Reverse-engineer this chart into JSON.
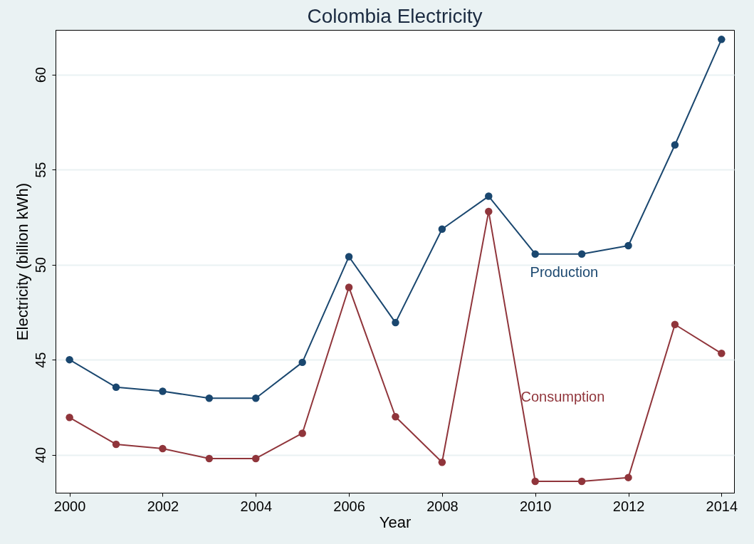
{
  "chart_data": {
    "type": "line",
    "title": "Colombia Electricity",
    "xlabel": "Year",
    "ylabel": "Electricity (billion kWh)",
    "x": [
      2000,
      2001,
      2002,
      2003,
      2004,
      2005,
      2006,
      2007,
      2008,
      2009,
      2010,
      2011,
      2012,
      2013,
      2014
    ],
    "series": [
      {
        "name": "Production",
        "color": "#1a476f",
        "values": [
          45.0,
          43.55,
          43.34,
          42.97,
          42.97,
          44.86,
          50.42,
          46.95,
          51.87,
          53.6,
          50.56,
          50.56,
          51.0,
          56.3,
          61.85
        ]
      },
      {
        "name": "Consumption",
        "color": "#90353b",
        "values": [
          41.96,
          40.55,
          40.32,
          39.8,
          39.8,
          41.13,
          48.81,
          42.0,
          39.6,
          52.8,
          38.6,
          38.6,
          38.8,
          46.85,
          45.33
        ]
      }
    ],
    "xlim": [
      1999.7,
      2014.27
    ],
    "xticks": [
      2000,
      2002,
      2004,
      2006,
      2008,
      2010,
      2012,
      2014
    ],
    "ylim": [
      38,
      62.35
    ],
    "yticks": [
      40,
      45,
      50,
      55,
      60
    ],
    "grid": "y",
    "legend": false,
    "marker": "circle",
    "line_style": "solid"
  }
}
